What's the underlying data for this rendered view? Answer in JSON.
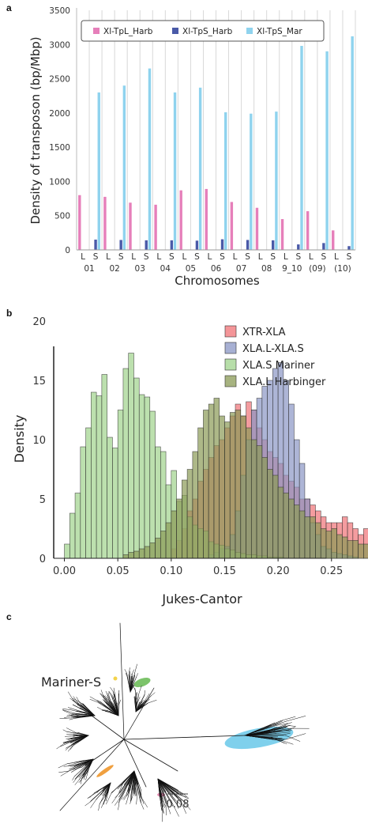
{
  "panel_a": {
    "letter": "a",
    "chart_data": {
      "type": "bar",
      "ylabel": "Density of transposon (bp/Mbp)",
      "xlabel": "Chromosomes",
      "ylim": [
        0,
        3500
      ],
      "yticks": [
        0,
        500,
        1000,
        1500,
        2000,
        2500,
        3000,
        3500
      ],
      "legend_position": "top-left",
      "grid": "vertical lines only",
      "groups": [
        "01",
        "02",
        "03",
        "04",
        "05",
        "06",
        "07",
        "08",
        "9_10",
        "(09)",
        "(10)"
      ],
      "subgroups": [
        "L",
        "S"
      ],
      "series": [
        {
          "name": "Xl-TpL_Harb",
          "color": "#e67fba",
          "values_L": [
            800,
            775,
            690,
            660,
            870,
            890,
            700,
            615,
            450,
            565,
            285
          ],
          "values_S": [
            5,
            5,
            5,
            5,
            5,
            5,
            5,
            5,
            5,
            5,
            5
          ]
        },
        {
          "name": "Xl-TpS_Harb",
          "color": "#4a5aa8",
          "values_L": [
            5,
            5,
            5,
            5,
            5,
            5,
            5,
            5,
            5,
            5,
            5
          ],
          "values_S": [
            150,
            145,
            140,
            140,
            135,
            155,
            145,
            140,
            80,
            100,
            55
          ]
        },
        {
          "name": "Xl-TpS_Mar",
          "color": "#8fd3ee",
          "values_L": [
            5,
            5,
            5,
            5,
            5,
            5,
            5,
            5,
            5,
            5,
            5
          ],
          "values_S": [
            2300,
            2400,
            2650,
            2300,
            2370,
            2010,
            1990,
            2020,
            2980,
            2900,
            3120
          ]
        }
      ]
    }
  },
  "panel_b": {
    "letter": "b",
    "chart_data": {
      "type": "histogram",
      "xlabel": "Jukes-Cantor",
      "ylabel": "Density",
      "xlim": [
        -0.01,
        0.245
      ],
      "ylim": [
        0,
        20
      ],
      "xticks": [
        "0.00",
        "0.05",
        "0.10",
        "0.15",
        "0.20",
        "0.25"
      ],
      "xtick_values": [
        0.0,
        0.05,
        0.1,
        0.15,
        0.2,
        0.25
      ],
      "yticks": [
        0,
        5,
        10,
        15,
        20
      ],
      "bin_start": 0.0,
      "bin_width": 0.005,
      "legend_position": "top-right",
      "series": [
        {
          "name": "XTR-XLA",
          "color": "#f07276",
          "values": [
            0,
            0,
            0,
            0,
            0,
            0,
            0,
            0,
            0,
            0,
            0,
            0,
            0,
            0,
            0,
            0,
            0,
            0,
            0,
            0,
            0.8,
            1.5,
            2.5,
            4,
            5,
            6.5,
            7.5,
            8.5,
            9.5,
            10,
            11,
            12,
            13,
            12,
            13.2,
            12.5,
            11,
            10,
            9,
            8.5,
            8,
            7,
            6.5,
            6,
            5,
            5,
            4.5,
            4,
            3.5,
            3,
            3,
            3,
            3.5,
            3,
            2.5,
            2,
            2.5,
            2,
            1.5,
            1.5,
            1.5,
            1.5,
            1.5,
            1.3,
            1.5,
            1.3,
            1.4,
            1.2,
            1,
            1
          ]
        },
        {
          "name": "XLA.L-XLA.S",
          "color": "#8a95c4",
          "values": [
            0,
            0,
            0,
            0,
            0,
            0,
            0,
            0,
            0,
            0,
            0,
            0,
            0,
            0,
            0,
            0,
            0,
            0,
            0,
            0,
            0,
            0,
            0,
            0,
            0,
            0,
            0,
            0.3,
            0.5,
            0.8,
            1,
            2,
            4,
            7,
            10,
            12.5,
            13.5,
            14.5,
            15,
            16,
            16.5,
            15,
            13,
            10,
            8,
            5,
            3,
            2,
            1,
            0.8,
            0.5,
            0.4,
            0.3,
            0.2,
            0.1,
            0,
            0,
            0,
            0,
            0,
            0,
            0,
            0,
            0,
            0,
            0,
            0,
            0,
            0,
            0
          ]
        },
        {
          "name": "XLA.S Mariner",
          "color": "#9fd38c",
          "values": [
            1.2,
            3.8,
            5.5,
            9.4,
            11,
            14,
            13.7,
            15.5,
            10.2,
            9.3,
            12.5,
            16,
            17.3,
            15.2,
            13.8,
            13.6,
            12.4,
            9.4,
            9,
            6.2,
            7.4,
            4.8,
            5.3,
            3.5,
            2.8,
            2.5,
            2.3,
            1.4,
            1.2,
            1.1,
            0.8,
            0.7,
            0.5,
            0.4,
            0.3,
            0.3,
            0.2,
            0.2,
            0.1,
            0.1,
            0.1,
            0,
            0,
            0,
            0,
            0,
            0,
            0,
            0,
            0,
            0,
            0,
            0,
            0,
            0,
            0,
            0,
            0,
            0,
            0,
            0,
            0,
            0,
            0,
            0,
            0,
            0,
            0,
            0,
            0
          ]
        },
        {
          "name": "XLA.L Harbinger",
          "color": "#8a9a55",
          "values": [
            0,
            0,
            0,
            0,
            0,
            0,
            0,
            0,
            0,
            0,
            0,
            0.3,
            0.5,
            0.6,
            0.8,
            1,
            1.3,
            1.7,
            2.3,
            3,
            4,
            5,
            6.6,
            7.5,
            9,
            11,
            12.5,
            13,
            13.5,
            12,
            11.5,
            12.3,
            12.5,
            12,
            11,
            10,
            9.5,
            8.5,
            7.5,
            7,
            6,
            5.5,
            5,
            4.5,
            4,
            3.5,
            3.5,
            3,
            2.5,
            2.3,
            2.5,
            2,
            1.8,
            1.5,
            1.5,
            1.2,
            1.2,
            1,
            0.8,
            0.7,
            0.5,
            0.5,
            0.5,
            0.5,
            0.4,
            0.4,
            0.3,
            0.3,
            0.3,
            0.3
          ]
        }
      ]
    }
  },
  "panel_c": {
    "letter": "c",
    "label": "Mariner-S",
    "scale_label": "0.08",
    "highlight_colors": {
      "large_clade": "#7fd0ec",
      "small_green": "#7cc36a",
      "small_orange": "#f0a040",
      "small_pink": "#e98fb5",
      "small_yellow": "#f3d34a"
    }
  }
}
